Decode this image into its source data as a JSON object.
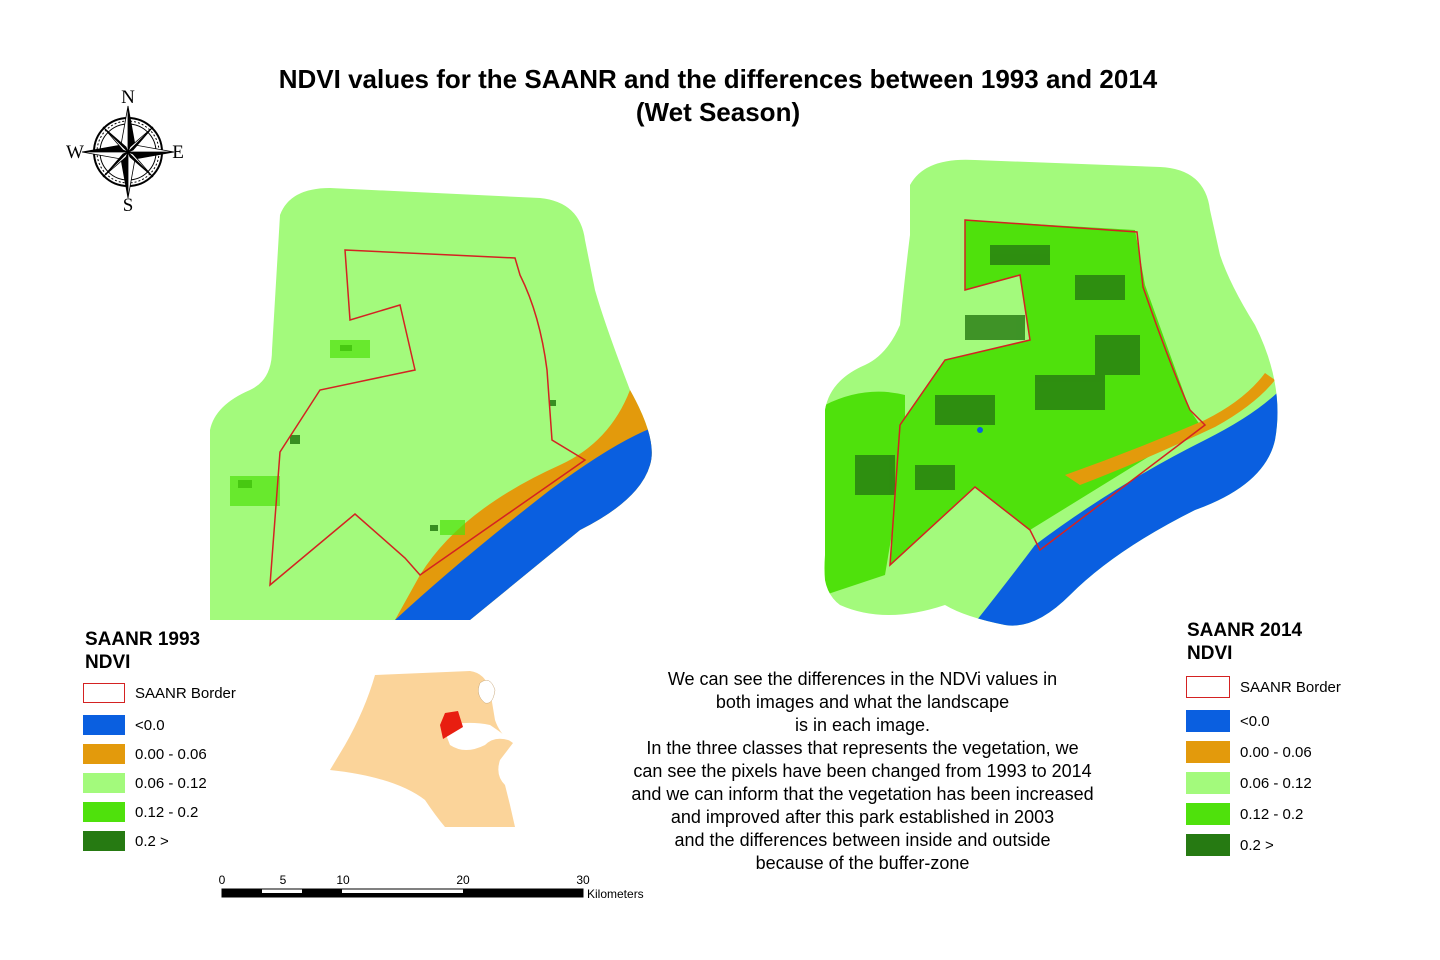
{
  "title": {
    "line1": "NDVI values for the SAANR and the differences between 1993 and 2014",
    "line2": "(Wet Season)"
  },
  "compass": {
    "n": "N",
    "s": "S",
    "e": "E",
    "w": "W",
    "icon": "compass-rose-icon"
  },
  "colors": {
    "below_zero": "#0a5fe0",
    "c000_006": "#e39a0c",
    "c006_012": "#a3fa7c",
    "c012_02": "#4fe10c",
    "c02_plus": "#267a12",
    "border": "#d42222",
    "kuwait": "#fbd49a",
    "reserve_locator": "#e81e10"
  },
  "legend_1993": {
    "title_line1": "SAANR 1993",
    "title_line2": "NDVI",
    "items": [
      {
        "label": "SAANR Border"
      },
      {
        "label": "<0.0"
      },
      {
        "label": "0.00 - 0.06"
      },
      {
        "label": "0.06 - 0.12"
      },
      {
        "label": "0.12 - 0.2"
      },
      {
        "label": "0.2 >"
      }
    ]
  },
  "legend_2014": {
    "title_line1": "SAANR 2014",
    "title_line2": "NDVI",
    "items": [
      {
        "label": "SAANR Border"
      },
      {
        "label": "<0.0"
      },
      {
        "label": "0.00 - 0.06"
      },
      {
        "label": "0.06 - 0.12"
      },
      {
        "label": "0.12 - 0.2"
      },
      {
        "label": "0.2 >"
      }
    ]
  },
  "note": {
    "lines": [
      "We can see the differences in the NDVi values in",
      "both images and what the landscape",
      "is in each image.",
      "In the three classes that represents the vegetation, we",
      "can see the pixels have been changed from 1993 to 2014",
      "and we can inform that the vegetation has been increased",
      "and improved after this park established in 2003",
      "and the differences between inside and outside",
      "because of  the buffer-zone"
    ]
  },
  "scale": {
    "ticks": [
      "0",
      "5",
      "10",
      "20",
      "30"
    ],
    "unit": "Kilometers"
  }
}
